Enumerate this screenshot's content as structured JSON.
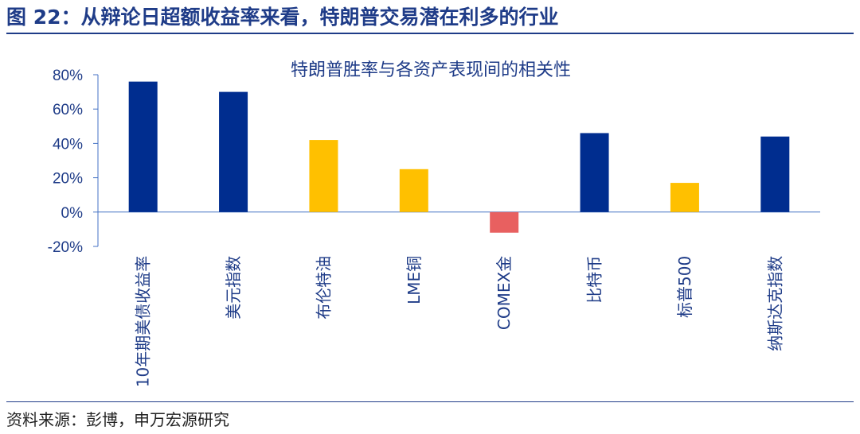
{
  "figure_title": "图 22：从辩论日超额收益率来看，特朗普交易潜在利多的行业",
  "source": "资料来源：彭博，申万宏源研究",
  "chart_data": {
    "type": "bar",
    "title": "特朗普胜率与各资产表现间的相关性",
    "xlabel": "",
    "ylabel": "",
    "categories": [
      "10年期美债收益率",
      "美元指数",
      "布伦特油",
      "LME铜",
      "COMEX金",
      "比特币",
      "标普500",
      "纳斯达克指数"
    ],
    "values": [
      76,
      70,
      42,
      25,
      -12,
      46,
      17,
      44
    ],
    "bar_colors": [
      "#002D8F",
      "#002D8F",
      "#FFC000",
      "#FFC000",
      "#E86060",
      "#002D8F",
      "#FFC000",
      "#002D8F"
    ],
    "ylim": [
      -20,
      80
    ],
    "yticks": [
      -20,
      0,
      20,
      40,
      60,
      80
    ],
    "ytick_labels": [
      "-20%",
      "0%",
      "20%",
      "40%",
      "60%",
      "80%"
    ],
    "grid": false,
    "legend": "none"
  },
  "colors": {
    "title": "#1f3c88",
    "axis": "#4472c4"
  }
}
